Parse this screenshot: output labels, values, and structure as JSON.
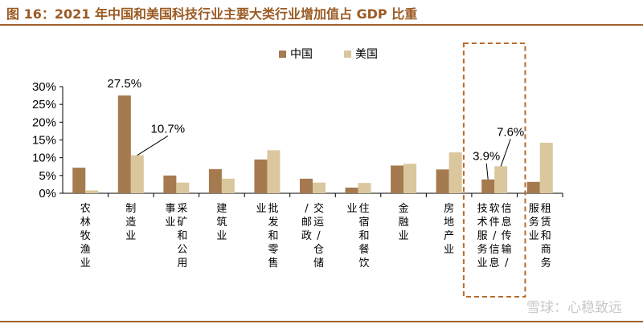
{
  "title": "图 16：2021 年中国和美国科技行业主要大类行业增加值占 GDP 比重",
  "watermark": "雪球：心稳致远",
  "colors": {
    "china": "#a57a4e",
    "usa": "#dbc79e",
    "frame": "#b76b2b",
    "accent": "#9b5a23"
  },
  "chart_data": {
    "type": "bar",
    "title": "图 16：2021 年中国和美国科技行业主要大类行业增加值占 GDP 比重",
    "ylim": [
      0,
      30
    ],
    "yticks": [
      "0%",
      "5%",
      "10%",
      "15%",
      "20%",
      "25%",
      "30%"
    ],
    "legend": {
      "position": "top"
    },
    "categories": [
      "农林牧渔业",
      "制造业",
      "采矿和公用事业",
      "建筑业",
      "批发和零售业",
      "交运/仓储/邮政",
      "住宿和餐饮业",
      "金融业",
      "房地产业",
      "信息传输/软件/信息技术服务业",
      "租赁和商务服务业"
    ],
    "series": [
      {
        "name": "中国",
        "values": [
          7.2,
          27.5,
          5.0,
          6.8,
          9.5,
          4.1,
          1.6,
          7.8,
          6.7,
          3.9,
          3.2
        ]
      },
      {
        "name": "美国",
        "values": [
          0.8,
          10.7,
          3.0,
          4.1,
          12.1,
          3.0,
          2.9,
          8.3,
          11.5,
          7.6,
          14.2
        ]
      }
    ],
    "data_labels": [
      {
        "series": 0,
        "index": 1,
        "text": "27.5%"
      },
      {
        "series": 1,
        "index": 1,
        "text": "10.7%"
      },
      {
        "series": 0,
        "index": 9,
        "text": "3.9%"
      },
      {
        "series": 1,
        "index": 9,
        "text": "7.6%"
      }
    ],
    "highlight_category": 9
  }
}
